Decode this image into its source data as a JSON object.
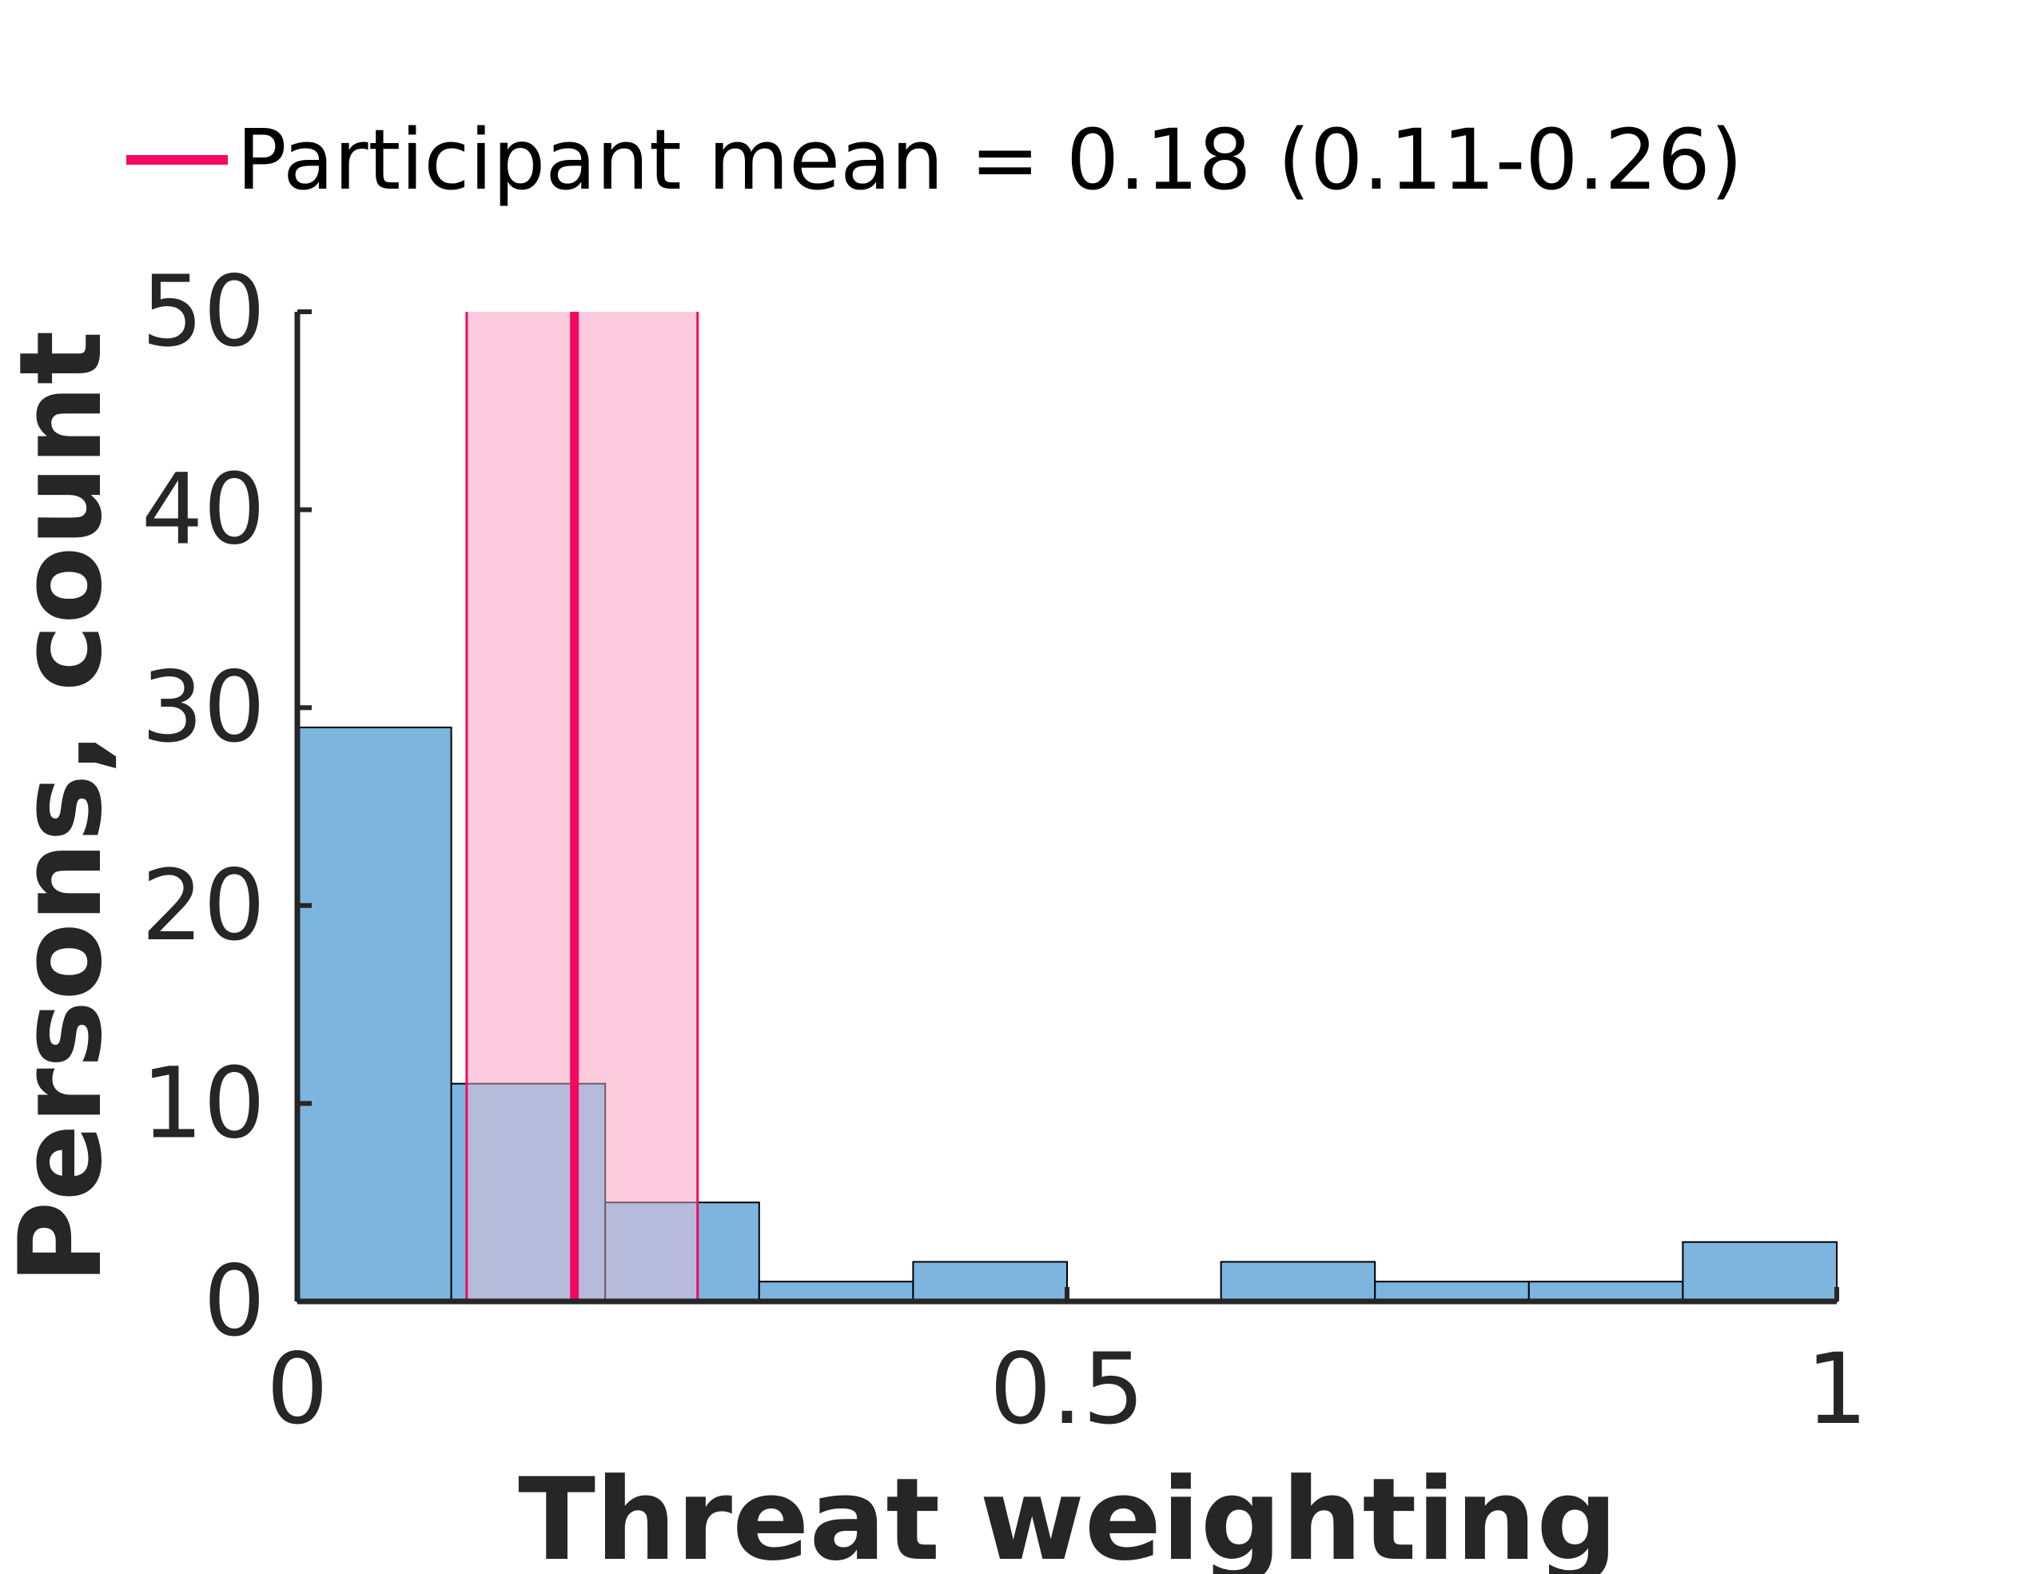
{
  "chart_data": {
    "type": "bar",
    "subtype": "histogram",
    "xlabel": "Threat weighting",
    "ylabel": "Persons, count",
    "xlim": [
      0,
      1
    ],
    "ylim": [
      0,
      50
    ],
    "xticks": [
      0,
      0.5,
      1
    ],
    "xtick_labels": [
      "0",
      "0.5",
      "1"
    ],
    "yticks": [
      0,
      10,
      20,
      30,
      40,
      50
    ],
    "ytick_labels": [
      "0",
      "10",
      "20",
      "30",
      "40",
      "50"
    ],
    "bin_edges": [
      0,
      0.1,
      0.2,
      0.3,
      0.4,
      0.5,
      0.6,
      0.7,
      0.8,
      0.9,
      1.0
    ],
    "values": [
      29,
      11,
      5,
      1,
      2,
      0,
      2,
      1,
      1,
      3
    ],
    "mean_line": {
      "x": 0.18,
      "ci": [
        0.11,
        0.26
      ]
    },
    "legend": {
      "position": "top",
      "entries": [
        "Participant mean = 0.18 (0.11-0.26)"
      ]
    },
    "colors": {
      "bars": "#66a8d8",
      "bar_edge": "#000000",
      "mean": "#f5085f",
      "ci_fill": "#fccbdd",
      "axis": "#262626"
    },
    "grid": false
  }
}
